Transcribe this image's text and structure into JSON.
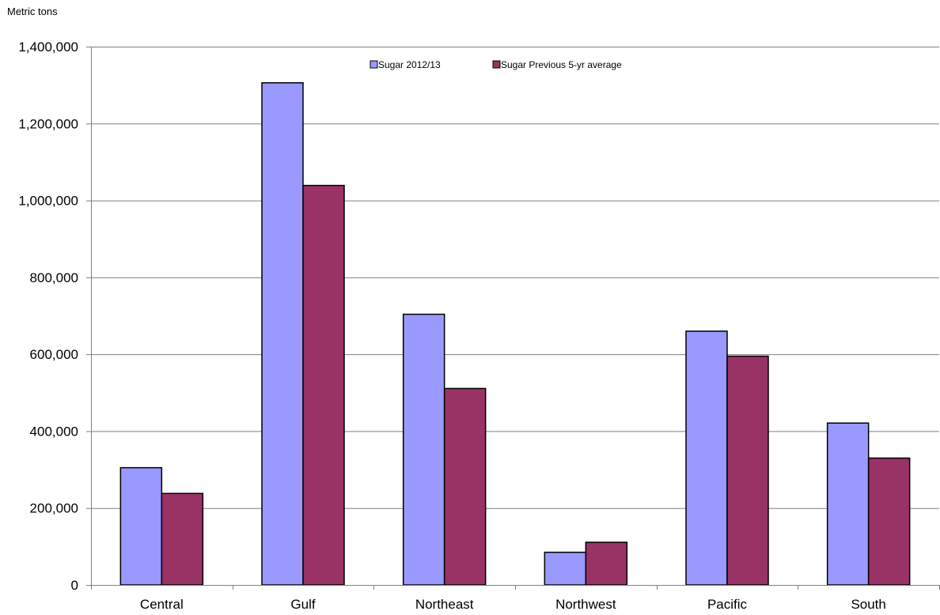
{
  "chart_data": {
    "type": "bar",
    "title": "",
    "ylabel": "Metric tons",
    "xlabel": "",
    "ylim": [
      0,
      1400000
    ],
    "yticks": [
      0,
      200000,
      400000,
      600000,
      800000,
      1000000,
      1200000,
      1400000
    ],
    "ytick_labels": [
      "0",
      "200,000",
      "400,000",
      "600,000",
      "800,000",
      "1,000,000",
      "1,200,000",
      "1,400,000"
    ],
    "grid": true,
    "legend_position": "top-center",
    "categories": [
      "Central",
      "Gulf",
      "Northeast",
      "Northwest",
      "Pacific",
      "South"
    ],
    "series": [
      {
        "name": "Sugar 2012/13",
        "color": "#9999ff",
        "values": [
          305000,
          1306000,
          704000,
          85000,
          660000,
          421000
        ]
      },
      {
        "name": "Sugar Previous 5-yr average",
        "color": "#993366",
        "values": [
          238000,
          1039000,
          511000,
          111000,
          595000,
          330000
        ]
      }
    ]
  }
}
